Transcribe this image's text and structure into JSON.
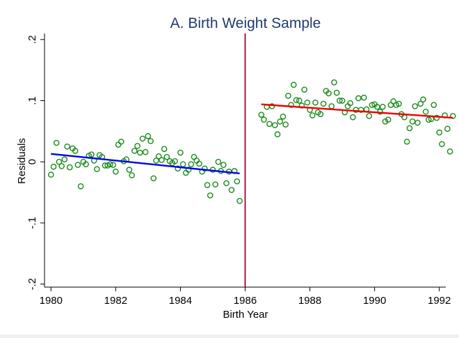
{
  "chart_data": {
    "type": "scatter",
    "title": "A. Birth Weight Sample",
    "xlabel": "Birth Year",
    "ylabel": "Residuals",
    "xlim": [
      1979.8,
      1992.2
    ],
    "ylim": [
      -0.205,
      0.21
    ],
    "xticks": [
      1980,
      1982,
      1984,
      1986,
      1988,
      1990,
      1992
    ],
    "xtick_labels": [
      "1980",
      "1982",
      "1984",
      "1986",
      "1988",
      "1990",
      "1992"
    ],
    "yticks": [
      -0.2,
      -0.1,
      0,
      0.1,
      0.2
    ],
    "ytick_labels": [
      "-.2",
      "-.1",
      "0",
      ".1",
      ".2"
    ],
    "grid": false,
    "legend": "none",
    "colors": {
      "points": "#1a8a1a",
      "fit_left": "#0000ee",
      "fit_right": "#ee0000",
      "cutoff": "#990033",
      "title": "#1f3a6e"
    },
    "cutoff_x": 1986,
    "series": [
      {
        "type": "scatter",
        "points": [
          [
            1980.0,
            -0.021
          ],
          [
            1980.08,
            -0.008
          ],
          [
            1980.17,
            0.031
          ],
          [
            1980.25,
            0.0
          ],
          [
            1980.33,
            -0.007
          ],
          [
            1980.42,
            0.004
          ],
          [
            1980.5,
            0.025
          ],
          [
            1980.58,
            -0.009
          ],
          [
            1980.67,
            0.022
          ],
          [
            1980.75,
            0.018
          ],
          [
            1980.83,
            -0.005
          ],
          [
            1980.92,
            -0.04
          ],
          [
            1981.0,
            0.0
          ],
          [
            1981.08,
            -0.004
          ],
          [
            1981.17,
            0.01
          ],
          [
            1981.25,
            0.012
          ],
          [
            1981.33,
            0.002
          ],
          [
            1981.42,
            -0.012
          ],
          [
            1981.5,
            0.011
          ],
          [
            1981.58,
            0.008
          ],
          [
            1981.67,
            -0.006
          ],
          [
            1981.75,
            -0.006
          ],
          [
            1981.83,
            -0.004
          ],
          [
            1981.92,
            -0.005
          ],
          [
            1982.0,
            -0.016
          ],
          [
            1982.08,
            0.028
          ],
          [
            1982.17,
            0.033
          ],
          [
            1982.25,
            0.001
          ],
          [
            1982.33,
            0.004
          ],
          [
            1982.42,
            -0.013
          ],
          [
            1982.5,
            -0.022
          ],
          [
            1982.58,
            0.018
          ],
          [
            1982.67,
            0.026
          ],
          [
            1982.75,
            0.015
          ],
          [
            1982.83,
            0.038
          ],
          [
            1982.92,
            0.016
          ],
          [
            1983.0,
            0.042
          ],
          [
            1983.08,
            0.034
          ],
          [
            1983.17,
            -0.027
          ],
          [
            1983.25,
            0.002
          ],
          [
            1983.33,
            0.009
          ],
          [
            1983.42,
            0.003
          ],
          [
            1983.5,
            0.021
          ],
          [
            1983.58,
            0.008
          ],
          [
            1983.67,
            0.001
          ],
          [
            1983.75,
            -0.002
          ],
          [
            1983.83,
            0.001
          ],
          [
            1983.92,
            -0.011
          ],
          [
            1984.0,
            0.015
          ],
          [
            1984.08,
            -0.004
          ],
          [
            1984.17,
            -0.018
          ],
          [
            1984.25,
            -0.013
          ],
          [
            1984.33,
            -0.004
          ],
          [
            1984.42,
            0.008
          ],
          [
            1984.5,
            0.002
          ],
          [
            1984.58,
            -0.003
          ],
          [
            1984.67,
            -0.016
          ],
          [
            1984.75,
            -0.011
          ],
          [
            1984.83,
            -0.038
          ],
          [
            1984.92,
            -0.055
          ],
          [
            1985.0,
            -0.013
          ],
          [
            1985.08,
            -0.037
          ],
          [
            1985.17,
            0.0
          ],
          [
            1985.25,
            -0.015
          ],
          [
            1985.33,
            -0.005
          ],
          [
            1985.42,
            -0.035
          ],
          [
            1985.5,
            -0.016
          ],
          [
            1985.58,
            -0.046
          ],
          [
            1985.67,
            -0.015
          ],
          [
            1985.75,
            -0.032
          ],
          [
            1985.83,
            -0.064
          ],
          [
            1986.5,
            0.077
          ],
          [
            1986.58,
            0.069
          ],
          [
            1986.67,
            0.09
          ],
          [
            1986.75,
            0.062
          ],
          [
            1986.83,
            0.091
          ],
          [
            1986.92,
            0.06
          ],
          [
            1987.0,
            0.045
          ],
          [
            1987.08,
            0.066
          ],
          [
            1987.17,
            0.074
          ],
          [
            1987.25,
            0.061
          ],
          [
            1987.33,
            0.108
          ],
          [
            1987.42,
            0.093
          ],
          [
            1987.5,
            0.126
          ],
          [
            1987.58,
            0.101
          ],
          [
            1987.67,
            0.1
          ],
          [
            1987.75,
            0.092
          ],
          [
            1987.83,
            0.118
          ],
          [
            1987.92,
            0.097
          ],
          [
            1988.0,
            0.085
          ],
          [
            1988.08,
            0.076
          ],
          [
            1988.17,
            0.097
          ],
          [
            1988.25,
            0.081
          ],
          [
            1988.33,
            0.078
          ],
          [
            1988.42,
            0.095
          ],
          [
            1988.5,
            0.116
          ],
          [
            1988.58,
            0.112
          ],
          [
            1988.67,
            0.091
          ],
          [
            1988.75,
            0.13
          ],
          [
            1988.83,
            0.113
          ],
          [
            1988.92,
            0.1
          ],
          [
            1989.0,
            0.1
          ],
          [
            1989.08,
            0.081
          ],
          [
            1989.17,
            0.091
          ],
          [
            1989.25,
            0.096
          ],
          [
            1989.33,
            0.073
          ],
          [
            1989.42,
            0.085
          ],
          [
            1989.5,
            0.104
          ],
          [
            1989.58,
            0.085
          ],
          [
            1989.67,
            0.105
          ],
          [
            1989.75,
            0.086
          ],
          [
            1989.83,
            0.075
          ],
          [
            1989.92,
            0.093
          ],
          [
            1990.0,
            0.094
          ],
          [
            1990.08,
            0.09
          ],
          [
            1990.17,
            0.082
          ],
          [
            1990.25,
            0.09
          ],
          [
            1990.33,
            0.066
          ],
          [
            1990.42,
            0.069
          ],
          [
            1990.5,
            0.093
          ],
          [
            1990.58,
            0.099
          ],
          [
            1990.67,
            0.093
          ],
          [
            1990.75,
            0.095
          ],
          [
            1990.83,
            0.078
          ],
          [
            1990.92,
            0.073
          ],
          [
            1991.0,
            0.033
          ],
          [
            1991.08,
            0.055
          ],
          [
            1991.17,
            0.066
          ],
          [
            1991.25,
            0.091
          ],
          [
            1991.33,
            0.064
          ],
          [
            1991.42,
            0.095
          ],
          [
            1991.5,
            0.102
          ],
          [
            1991.58,
            0.082
          ],
          [
            1991.67,
            0.069
          ],
          [
            1991.75,
            0.07
          ],
          [
            1991.83,
            0.093
          ],
          [
            1991.92,
            0.072
          ],
          [
            1992.0,
            0.048
          ],
          [
            1992.08,
            0.029
          ],
          [
            1992.17,
            0.076
          ],
          [
            1992.25,
            0.054
          ],
          [
            1992.33,
            0.017
          ],
          [
            1992.42,
            0.075
          ]
        ]
      },
      {
        "type": "line",
        "points": [
          [
            1980.0,
            0.013
          ],
          [
            1985.83,
            -0.019
          ]
        ]
      },
      {
        "type": "line",
        "points": [
          [
            1986.5,
            0.094
          ],
          [
            1992.42,
            0.072
          ]
        ]
      }
    ]
  }
}
